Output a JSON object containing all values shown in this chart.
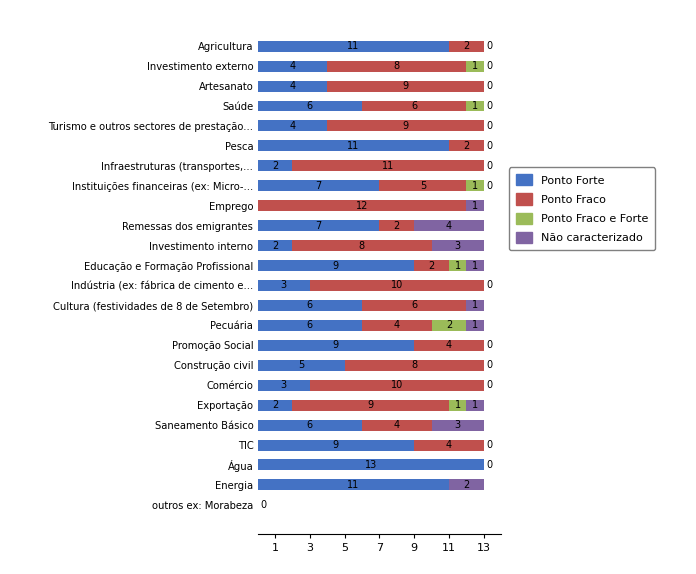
{
  "categories": [
    "outros ex: Morabeza",
    "Energia",
    "Água",
    "TIC",
    "Saneamento Básico",
    "Exportação",
    "Comércio",
    "Construção civil",
    "Promoção Social",
    "Pecuária",
    "Cultura (festividades de 8 de Setembro)",
    "Indústria (ex: fábrica de cimento e...",
    "Educação e Formação Profissional",
    "Investimento interno",
    "Remessas dos emigrantes",
    "Emprego",
    "Instituições financeiras (ex: Micro-...",
    "Infraestruturas (transportes,...",
    "Pesca",
    "Turismo e outros sectores de prestação...",
    "Saúde",
    "Artesanato",
    "Investimento externo",
    "Agricultura"
  ],
  "ponto_forte": [
    0,
    11,
    13,
    9,
    6,
    2,
    3,
    5,
    9,
    6,
    6,
    3,
    9,
    2,
    7,
    0,
    7,
    2,
    11,
    4,
    6,
    4,
    4,
    11
  ],
  "ponto_fraco": [
    0,
    0,
    0,
    4,
    4,
    9,
    10,
    8,
    4,
    4,
    6,
    10,
    2,
    8,
    2,
    12,
    5,
    11,
    2,
    9,
    6,
    9,
    8,
    2
  ],
  "ponto_fraco_forte": [
    0,
    0,
    0,
    0,
    0,
    1,
    0,
    0,
    0,
    2,
    0,
    0,
    1,
    0,
    0,
    0,
    1,
    0,
    0,
    0,
    1,
    0,
    1,
    0
  ],
  "nao_caracterizado": [
    0,
    2,
    0,
    0,
    3,
    1,
    0,
    0,
    0,
    1,
    1,
    0,
    1,
    3,
    4,
    1,
    0,
    0,
    0,
    0,
    0,
    0,
    0,
    0
  ],
  "color_forte": "#4472C4",
  "color_fraco": "#C0504D",
  "color_fraco_forte": "#9BBB59",
  "color_nao": "#8064A2",
  "xlim": [
    0,
    14
  ],
  "xticks": [
    1,
    3,
    5,
    7,
    9,
    11,
    13
  ],
  "legend_labels": [
    "Ponto Forte",
    "Ponto Fraco",
    "Ponto Fraco e Forte",
    "Não caracterizado"
  ],
  "figsize": [
    6.96,
    5.74
  ],
  "dpi": 100
}
